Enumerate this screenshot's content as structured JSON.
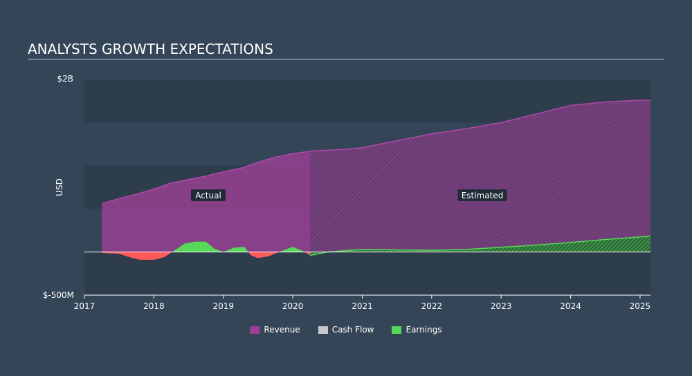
{
  "title": "ANALYSTS GROWTH EXPECTATIONS",
  "colors": {
    "background": "#344557",
    "band_dark": "#2e3d4c",
    "revenue": "#9b3f94",
    "cash_flow": "#c8c8c8",
    "earnings_positive": "#58d858",
    "earnings_negative": "#ff5a5a"
  },
  "chart_data": {
    "type": "area",
    "ylabel": "USD",
    "xlabel": "",
    "ylim": [
      -500000000,
      2000000000
    ],
    "ytick_labels": [
      "$2B",
      "$-500M"
    ],
    "xlim": [
      2017,
      2025.15
    ],
    "xtick_labels": [
      "2017",
      "2018",
      "2019",
      "2020",
      "2021",
      "2022",
      "2023",
      "2024",
      "2025"
    ],
    "actual_end_x": 2020.25,
    "annotations": [
      "Actual",
      "Estimated"
    ],
    "legend": [
      "Revenue",
      "Cash Flow",
      "Earnings"
    ],
    "legend_position": "bottom-center",
    "series": [
      {
        "name": "Revenue",
        "x": [
          2017.25,
          2017.5,
          2017.75,
          2018.0,
          2018.25,
          2018.5,
          2018.75,
          2019.0,
          2019.25,
          2019.5,
          2019.75,
          2020.0,
          2020.25,
          2020.75,
          2021.0,
          2021.5,
          2022.0,
          2022.5,
          2023.0,
          2023.5,
          2024.0,
          2024.5,
          2025.0,
          2025.15
        ],
        "values": [
          560000000,
          620000000,
          670000000,
          730000000,
          800000000,
          840000000,
          880000000,
          930000000,
          970000000,
          1040000000,
          1100000000,
          1140000000,
          1170000000,
          1190000000,
          1210000000,
          1290000000,
          1370000000,
          1430000000,
          1500000000,
          1600000000,
          1700000000,
          1740000000,
          1760000000,
          1760000000
        ]
      },
      {
        "name": "Earnings",
        "x": [
          2017.25,
          2017.5,
          2017.65,
          2017.8,
          2018.0,
          2018.15,
          2018.3,
          2018.45,
          2018.6,
          2018.75,
          2018.87,
          2019.0,
          2019.15,
          2019.3,
          2019.4,
          2019.5,
          2019.65,
          2019.8,
          2020.0,
          2020.15,
          2020.25,
          2020.5,
          2021.0,
          2021.5,
          2022.0,
          2022.5,
          2023.0,
          2023.5,
          2024.0,
          2024.5,
          2025.0,
          2025.15
        ],
        "values": [
          -10000000,
          -20000000,
          -60000000,
          -90000000,
          -90000000,
          -60000000,
          20000000,
          100000000,
          120000000,
          120000000,
          40000000,
          0,
          50000000,
          60000000,
          -40000000,
          -70000000,
          -50000000,
          0,
          60000000,
          10000000,
          -40000000,
          0,
          30000000,
          25000000,
          20000000,
          30000000,
          55000000,
          80000000,
          110000000,
          145000000,
          175000000,
          185000000
        ]
      },
      {
        "name": "Cash Flow",
        "x": [],
        "values": []
      }
    ]
  }
}
